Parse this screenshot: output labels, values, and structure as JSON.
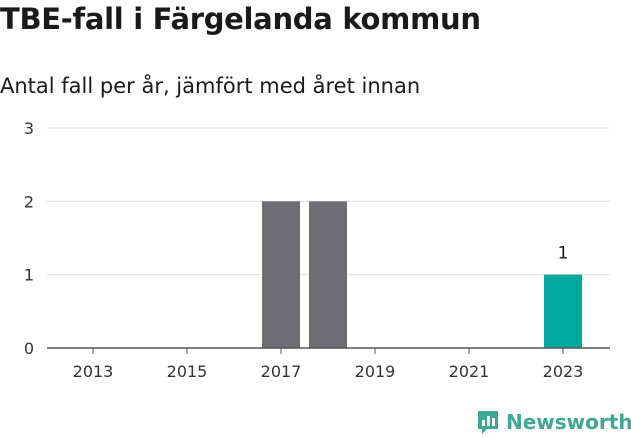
{
  "title": "TBE-fall i Färgelanda kommun",
  "subtitle": "Antal fall per år, jämfört med året innan",
  "brand": "Newsworthy",
  "colors": {
    "bar": "#6d6d73",
    "highlight": "#00a99d",
    "grid": "#e0e0e0",
    "brand": "#3fa796"
  },
  "chart_data": {
    "type": "bar",
    "title": "TBE-fall i Färgelanda kommun",
    "subtitle": "Antal fall per år, jämfört med året innan",
    "categories": [
      "2013",
      "2014",
      "2015",
      "2016",
      "2017",
      "2018",
      "2019",
      "2020",
      "2021",
      "2022",
      "2023"
    ],
    "values": [
      0,
      0,
      0,
      0,
      2,
      2,
      0,
      0,
      0,
      0,
      1
    ],
    "highlight_index": 10,
    "data_labels": [
      {
        "index": 10,
        "text": "1"
      }
    ],
    "x_tick_labels": [
      "2013",
      "2015",
      "2017",
      "2019",
      "2021",
      "2023"
    ],
    "y_ticks": [
      "0",
      "1",
      "2",
      "3"
    ],
    "ylim": [
      0,
      3
    ],
    "xlabel": "",
    "ylabel": "",
    "grid": true,
    "legend": "none"
  }
}
